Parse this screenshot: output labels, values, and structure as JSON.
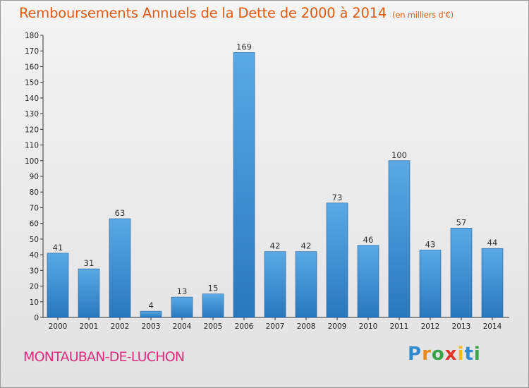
{
  "header": {
    "title": "Remboursements Annuels de la Dette de 2000 à 2014",
    "subtitle": "(en milliers d'€)"
  },
  "footer": {
    "commune": "MONTAUBAN-DE-LUCHON",
    "logo_letters": [
      "P",
      "r",
      "o",
      "x",
      "i",
      "t",
      "i"
    ]
  },
  "colors": {
    "bar_light": "#5aa9e6",
    "bar_dark": "#2a78bc",
    "title": "#e05a12",
    "commune": "#dd2c7a"
  },
  "chart_data": {
    "type": "bar",
    "title": "Remboursements Annuels de la Dette de 2000 à 2014",
    "subtitle": "(en milliers d'€)",
    "categories": [
      "2000",
      "2001",
      "2002",
      "2003",
      "2004",
      "2005",
      "2006",
      "2007",
      "2008",
      "2009",
      "2010",
      "2011",
      "2012",
      "2013",
      "2014"
    ],
    "values": [
      41,
      31,
      63,
      4,
      13,
      15,
      169,
      42,
      42,
      73,
      46,
      100,
      43,
      57,
      44
    ],
    "ylim": [
      0,
      180
    ],
    "yticks": [
      0,
      10,
      20,
      30,
      40,
      50,
      60,
      70,
      80,
      90,
      100,
      110,
      120,
      130,
      140,
      150,
      160,
      170,
      180
    ],
    "grid": false,
    "data_labels": true
  }
}
